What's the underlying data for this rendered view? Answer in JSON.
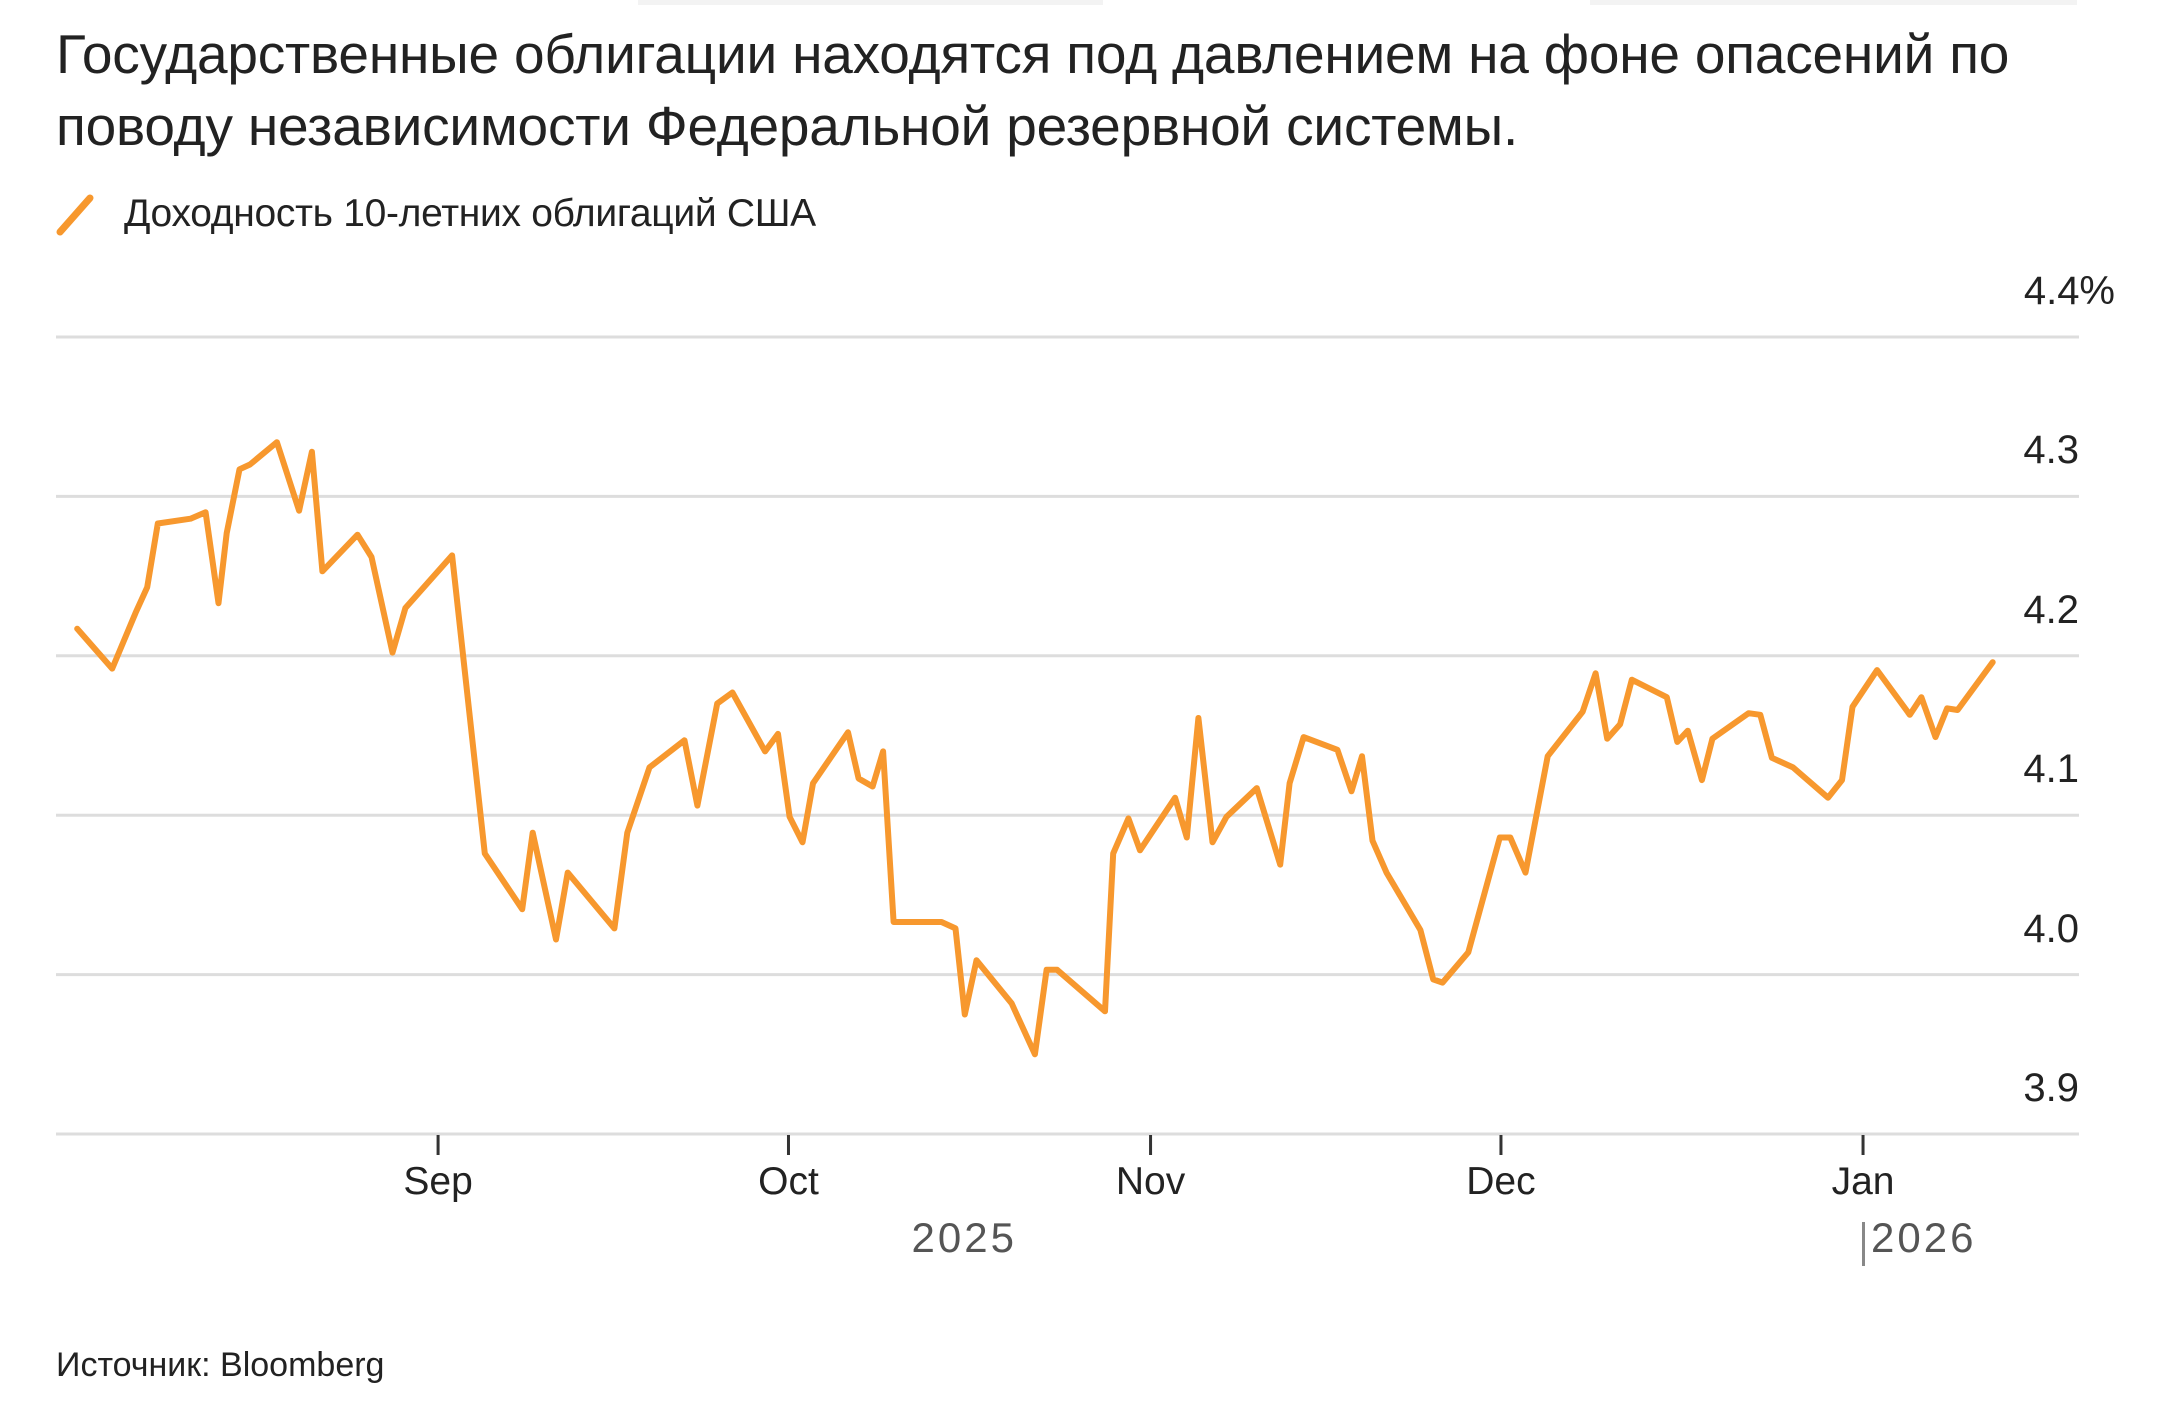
{
  "header": {
    "title": "Государственные облигации находятся под давлением на фоне опасений по поводу независимости Федеральной резервной системы."
  },
  "legend": {
    "items": [
      {
        "label": "Доходность 10-летних облигаций США",
        "color": "#f7982e",
        "icon": "diagonal-line-icon"
      }
    ]
  },
  "y_axis": {
    "ticks": [
      {
        "value": 4.4,
        "label": "4.4%"
      },
      {
        "value": 4.3,
        "label": "4.3"
      },
      {
        "value": 4.2,
        "label": "4.2"
      },
      {
        "value": 4.1,
        "label": "4.1"
      },
      {
        "value": 4.0,
        "label": "4.0"
      },
      {
        "value": 3.9,
        "label": "3.9"
      }
    ]
  },
  "x_axis": {
    "ticks": [
      {
        "label": "Sep",
        "day": 31
      },
      {
        "label": "Oct",
        "day": 61
      },
      {
        "label": "Nov",
        "day": 92
      },
      {
        "label": "Dec",
        "day": 122
      },
      {
        "label": "Jan",
        "day": 153
      }
    ],
    "years": [
      {
        "label": "2025",
        "day": 76.5,
        "marker": false
      },
      {
        "label": "2026",
        "day": 153,
        "marker": true
      }
    ]
  },
  "footer": {
    "source": "Источник: Bloomberg"
  },
  "colors": {
    "line": "#f7982e",
    "grid": "#dddddd",
    "text": "#222222",
    "year_text": "#555555"
  },
  "chart_data": {
    "type": "line",
    "title": "Государственные облигации находятся под давлением на фоне опасений по поводу независимости Федеральной резервной системы.",
    "xlabel": "",
    "ylabel": "",
    "ylim": [
      3.9,
      4.4
    ],
    "y_unit": "%",
    "grid": true,
    "legend_position": "top-left",
    "x_reference": "day offset from 2025-08-01",
    "x_tick_labels": [
      "Sep",
      "Oct",
      "Nov",
      "Dec",
      "Jan"
    ],
    "year_labels": [
      "2025",
      "2026"
    ],
    "series": [
      {
        "name": "Доходность 10-летних облигаций США",
        "color": "#f7982e",
        "points": [
          {
            "date": "2025-08-01",
            "day": 0.1,
            "value": 4.217
          },
          {
            "date": "2025-08-04",
            "day": 3.1,
            "value": 4.192
          },
          {
            "date": "2025-08-06",
            "day": 5.1,
            "value": 4.227
          },
          {
            "date": "2025-08-07",
            "day": 6.1,
            "value": 4.243
          },
          {
            "date": "2025-08-08",
            "day": 7.0,
            "value": 4.283
          },
          {
            "date": "2025-08-11",
            "day": 9.8,
            "value": 4.286
          },
          {
            "date": "2025-08-12",
            "day": 11.1,
            "value": 4.29
          },
          {
            "date": "2025-08-13",
            "day": 12.2,
            "value": 4.233
          },
          {
            "date": "2025-08-14",
            "day": 12.9,
            "value": 4.277
          },
          {
            "date": "2025-08-15",
            "day": 14.0,
            "value": 4.317
          },
          {
            "date": "2025-08-15",
            "day": 14.9,
            "value": 4.32
          },
          {
            "date": "2025-08-18",
            "day": 17.2,
            "value": 4.334
          },
          {
            "date": "2025-08-20",
            "day": 19.1,
            "value": 4.291
          },
          {
            "date": "2025-08-21",
            "day": 20.2,
            "value": 4.328
          },
          {
            "date": "2025-08-22",
            "day": 21.1,
            "value": 4.253
          },
          {
            "date": "2025-08-25",
            "day": 24.1,
            "value": 4.276
          },
          {
            "date": "2025-08-26",
            "day": 25.3,
            "value": 4.262
          },
          {
            "date": "2025-08-28",
            "day": 27.1,
            "value": 4.202
          },
          {
            "date": "2025-08-29",
            "day": 28.2,
            "value": 4.23
          },
          {
            "date": "2025-09-02",
            "day": 32.2,
            "value": 4.263
          },
          {
            "date": "2025-09-05",
            "day": 35.0,
            "value": 4.076
          },
          {
            "date": "2025-09-08",
            "day": 38.2,
            "value": 4.041
          },
          {
            "date": "2025-09-09",
            "day": 39.1,
            "value": 4.089
          },
          {
            "date": "2025-09-11",
            "day": 41.1,
            "value": 4.022
          },
          {
            "date": "2025-09-12",
            "day": 42.1,
            "value": 4.064
          },
          {
            "date": "2025-09-16",
            "day": 46.1,
            "value": 4.029
          },
          {
            "date": "2025-09-17",
            "day": 47.2,
            "value": 4.089
          },
          {
            "date": "2025-09-19",
            "day": 49.1,
            "value": 4.13
          },
          {
            "date": "2025-09-22",
            "day": 52.1,
            "value": 4.147
          },
          {
            "date": "2025-09-23",
            "day": 53.2,
            "value": 4.106
          },
          {
            "date": "2025-09-25",
            "day": 54.9,
            "value": 4.17
          },
          {
            "date": "2025-09-26",
            "day": 56.2,
            "value": 4.177
          },
          {
            "date": "2025-09-29",
            "day": 59.0,
            "value": 4.14
          },
          {
            "date": "2025-09-30",
            "day": 60.1,
            "value": 4.151
          },
          {
            "date": "2025-10-01",
            "day": 61.1,
            "value": 4.099
          },
          {
            "date": "2025-10-02",
            "day": 62.2,
            "value": 4.083
          },
          {
            "date": "2025-10-03",
            "day": 63.1,
            "value": 4.12
          },
          {
            "date": "2025-10-06",
            "day": 66.1,
            "value": 4.152
          },
          {
            "date": "2025-10-07",
            "day": 67.0,
            "value": 4.123
          },
          {
            "date": "2025-10-08",
            "day": 68.2,
            "value": 4.118
          },
          {
            "date": "2025-10-09",
            "day": 69.1,
            "value": 4.14
          },
          {
            "date": "2025-10-10",
            "day": 70.0,
            "value": 4.033
          },
          {
            "date": "2025-10-14",
            "day": 74.1,
            "value": 4.033
          },
          {
            "date": "2025-10-15",
            "day": 75.3,
            "value": 4.029
          },
          {
            "date": "2025-10-16",
            "day": 76.1,
            "value": 3.975
          },
          {
            "date": "2025-10-17",
            "day": 77.1,
            "value": 4.009
          },
          {
            "date": "2025-10-20",
            "day": 80.1,
            "value": 3.982
          },
          {
            "date": "2025-10-22",
            "day": 82.1,
            "value": 3.95
          },
          {
            "date": "2025-10-23",
            "day": 83.1,
            "value": 4.003
          },
          {
            "date": "2025-10-24",
            "day": 84.0,
            "value": 4.003
          },
          {
            "date": "2025-10-28",
            "day": 88.1,
            "value": 3.977
          },
          {
            "date": "2025-10-29",
            "day": 88.8,
            "value": 4.076
          },
          {
            "date": "2025-10-30",
            "day": 90.1,
            "value": 4.098
          },
          {
            "date": "2025-10-31",
            "day": 91.1,
            "value": 4.078
          },
          {
            "date": "2025-11-03",
            "day": 94.1,
            "value": 4.111
          },
          {
            "date": "2025-11-04",
            "day": 95.1,
            "value": 4.086
          },
          {
            "date": "2025-11-05",
            "day": 96.1,
            "value": 4.161
          },
          {
            "date": "2025-11-06",
            "day": 97.3,
            "value": 4.083
          },
          {
            "date": "2025-11-07",
            "day": 98.5,
            "value": 4.099
          },
          {
            "date": "2025-11-10",
            "day": 101.1,
            "value": 4.117
          },
          {
            "date": "2025-11-12",
            "day": 103.1,
            "value": 4.069
          },
          {
            "date": "2025-11-13",
            "day": 103.9,
            "value": 4.12
          },
          {
            "date": "2025-11-14",
            "day": 105.1,
            "value": 4.149
          },
          {
            "date": "2025-11-17",
            "day": 108.0,
            "value": 4.141
          },
          {
            "date": "2025-11-18",
            "day": 109.2,
            "value": 4.115
          },
          {
            "date": "2025-11-19",
            "day": 110.1,
            "value": 4.137
          },
          {
            "date": "2025-11-20",
            "day": 111.0,
            "value": 4.084
          },
          {
            "date": "2025-11-21",
            "day": 112.2,
            "value": 4.064
          },
          {
            "date": "2025-11-24",
            "day": 115.1,
            "value": 4.028
          },
          {
            "date": "2025-11-25",
            "day": 116.2,
            "value": 3.997
          },
          {
            "date": "2025-11-26",
            "day": 117.0,
            "value": 3.995
          },
          {
            "date": "2025-11-28",
            "day": 119.2,
            "value": 4.014
          },
          {
            "date": "2025-12-01",
            "day": 121.9,
            "value": 4.086
          },
          {
            "date": "2025-12-02",
            "day": 122.8,
            "value": 4.086
          },
          {
            "date": "2025-12-03",
            "day": 124.1,
            "value": 4.064
          },
          {
            "date": "2025-12-05",
            "day": 126.0,
            "value": 4.137
          },
          {
            "date": "2025-12-08",
            "day": 129.0,
            "value": 4.165
          },
          {
            "date": "2025-12-09",
            "day": 130.1,
            "value": 4.189
          },
          {
            "date": "2025-12-10",
            "day": 131.1,
            "value": 4.148
          },
          {
            "date": "2025-12-11",
            "day": 132.2,
            "value": 4.157
          },
          {
            "date": "2025-12-12",
            "day": 133.2,
            "value": 4.185
          },
          {
            "date": "2025-12-15",
            "day": 136.2,
            "value": 4.174
          },
          {
            "date": "2025-12-16",
            "day": 137.1,
            "value": 4.146
          },
          {
            "date": "2025-12-17",
            "day": 138.0,
            "value": 4.153
          },
          {
            "date": "2025-12-18",
            "day": 139.2,
            "value": 4.122
          },
          {
            "date": "2025-12-19",
            "day": 140.1,
            "value": 4.148
          },
          {
            "date": "2025-12-22",
            "day": 143.2,
            "value": 4.164
          },
          {
            "date": "2025-12-23",
            "day": 144.2,
            "value": 4.163
          },
          {
            "date": "2025-12-24",
            "day": 145.2,
            "value": 4.136
          },
          {
            "date": "2025-12-26",
            "day": 147.0,
            "value": 4.13
          },
          {
            "date": "2025-12-29",
            "day": 150.0,
            "value": 4.111
          },
          {
            "date": "2025-12-30",
            "day": 151.2,
            "value": 4.122
          },
          {
            "date": "2025-12-31",
            "day": 152.1,
            "value": 4.168
          },
          {
            "date": "2026-01-02",
            "day": 154.2,
            "value": 4.191
          },
          {
            "date": "2026-01-05",
            "day": 157.0,
            "value": 4.163
          },
          {
            "date": "2026-01-06",
            "day": 158.0,
            "value": 4.174
          },
          {
            "date": "2026-01-07",
            "day": 159.2,
            "value": 4.149
          },
          {
            "date": "2026-01-08",
            "day": 160.2,
            "value": 4.167
          },
          {
            "date": "2026-01-09",
            "day": 161.1,
            "value": 4.166
          },
          {
            "date": "2026-01-12",
            "day": 164.1,
            "value": 4.196
          }
        ]
      }
    ]
  }
}
